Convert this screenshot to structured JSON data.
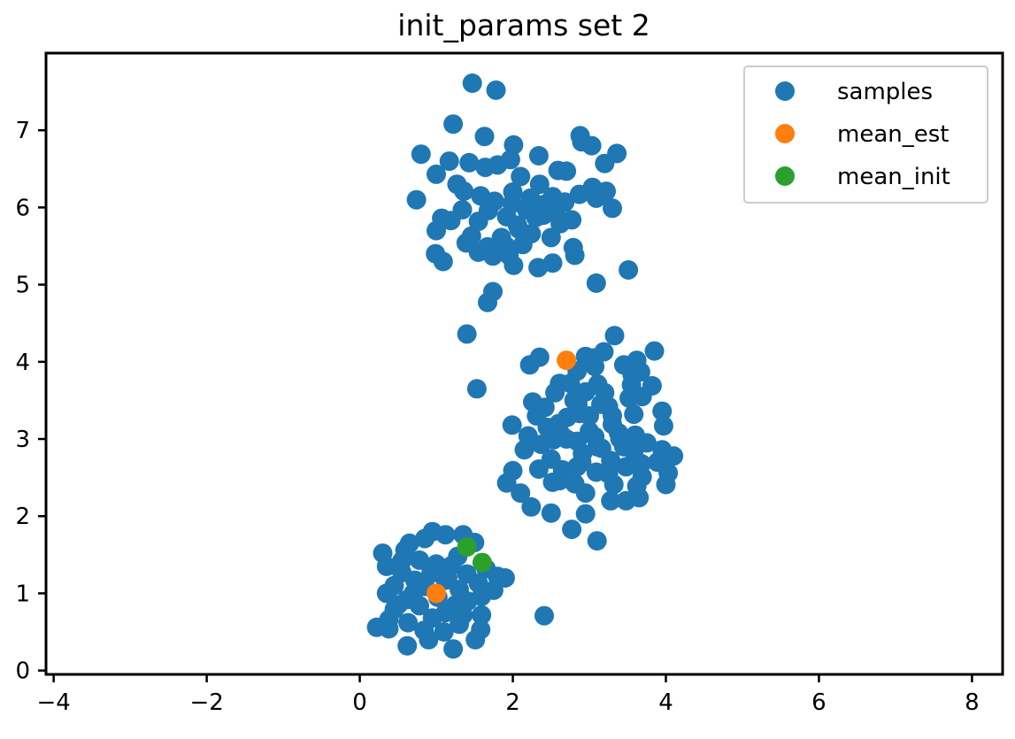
{
  "chart_data": {
    "type": "scatter",
    "title": "init_params set 2",
    "xlabel": "",
    "ylabel": "",
    "xlim": [
      -4.1,
      8.4
    ],
    "ylim": [
      -0.05,
      8.0
    ],
    "xticks": [
      -4,
      -2,
      0,
      2,
      4,
      6,
      8
    ],
    "xtick_labels": [
      "−4",
      "−2",
      "0",
      "2",
      "4",
      "6",
      "8"
    ],
    "yticks": [
      0,
      1,
      2,
      3,
      4,
      5,
      6,
      7
    ],
    "ytick_labels": [
      "0",
      "1",
      "2",
      "3",
      "4",
      "5",
      "6",
      "7"
    ],
    "grid": false,
    "legend_position": "top-right",
    "series": [
      {
        "name": "samples",
        "color": "#1f77b4",
        "points": [
          [
            1.47,
            7.61
          ],
          [
            1.78,
            7.52
          ],
          [
            1.22,
            7.08
          ],
          [
            2.88,
            6.93
          ],
          [
            1.63,
            6.92
          ],
          [
            2.01,
            6.81
          ],
          [
            2.9,
            6.85
          ],
          [
            3.03,
            6.8
          ],
          [
            0.8,
            6.69
          ],
          [
            2.34,
            6.67
          ],
          [
            3.36,
            6.7
          ],
          [
            3.2,
            6.57
          ],
          [
            1.17,
            6.6
          ],
          [
            1.43,
            6.58
          ],
          [
            2.59,
            6.48
          ],
          [
            2.7,
            6.47
          ],
          [
            1.0,
            6.43
          ],
          [
            1.64,
            6.52
          ],
          [
            1.8,
            6.55
          ],
          [
            1.97,
            6.62
          ],
          [
            2.1,
            6.4
          ],
          [
            1.27,
            6.3
          ],
          [
            1.36,
            6.21
          ],
          [
            3.04,
            6.26
          ],
          [
            3.22,
            6.21
          ],
          [
            0.74,
            6.1
          ],
          [
            1.76,
            6.08
          ],
          [
            2.23,
            6.12
          ],
          [
            2.52,
            6.14
          ],
          [
            2.87,
            6.17
          ],
          [
            3.09,
            6.12
          ],
          [
            1.68,
            5.96
          ],
          [
            1.99,
            6.05
          ],
          [
            2.18,
            5.97
          ],
          [
            2.41,
            6.04
          ],
          [
            2.68,
            6.07
          ],
          [
            3.3,
            5.99
          ],
          [
            1.34,
            5.97
          ],
          [
            1.07,
            5.86
          ],
          [
            1.92,
            5.88
          ],
          [
            2.3,
            5.87
          ],
          [
            2.77,
            5.84
          ],
          [
            1.55,
            5.82
          ],
          [
            1.19,
            5.83
          ],
          [
            2.06,
            5.77
          ],
          [
            2.62,
            5.79
          ],
          [
            1.0,
            5.7
          ],
          [
            1.46,
            5.63
          ],
          [
            1.85,
            5.61
          ],
          [
            2.24,
            5.66
          ],
          [
            2.5,
            5.61
          ],
          [
            2.79,
            5.48
          ],
          [
            1.39,
            5.54
          ],
          [
            1.67,
            5.49
          ],
          [
            2.13,
            5.52
          ],
          [
            1.55,
            5.42
          ],
          [
            1.74,
            5.37
          ],
          [
            2.81,
            5.38
          ],
          [
            1.95,
            5.38
          ],
          [
            1.09,
            5.3
          ],
          [
            0.99,
            5.4
          ],
          [
            2.01,
            5.25
          ],
          [
            2.33,
            5.22
          ],
          [
            2.52,
            5.28
          ],
          [
            3.51,
            5.19
          ],
          [
            3.09,
            5.02
          ],
          [
            1.74,
            4.91
          ],
          [
            1.67,
            4.77
          ],
          [
            1.4,
            4.36
          ],
          [
            2.08,
            5.72
          ],
          [
            2.4,
            5.9
          ],
          [
            2.56,
            5.92
          ],
          [
            2.0,
            6.2
          ],
          [
            1.58,
            6.15
          ],
          [
            2.35,
            6.3
          ],
          [
            1.91,
            5.5
          ],
          [
            3.33,
            4.34
          ],
          [
            3.85,
            4.14
          ],
          [
            3.19,
            4.13
          ],
          [
            2.95,
            4.07
          ],
          [
            3.05,
            4.05
          ],
          [
            2.35,
            4.06
          ],
          [
            3.62,
            4.02
          ],
          [
            2.22,
            3.96
          ],
          [
            3.45,
            3.96
          ],
          [
            3.07,
            3.94
          ],
          [
            3.67,
            3.87
          ],
          [
            2.84,
            3.88
          ],
          [
            3.56,
            3.83
          ],
          [
            1.53,
            3.65
          ],
          [
            3.82,
            3.69
          ],
          [
            2.61,
            3.72
          ],
          [
            2.75,
            3.72
          ],
          [
            3.11,
            3.71
          ],
          [
            3.69,
            3.55
          ],
          [
            2.26,
            3.48
          ],
          [
            2.95,
            3.61
          ],
          [
            3.52,
            3.53
          ],
          [
            2.42,
            3.41
          ],
          [
            3.25,
            3.42
          ],
          [
            2.71,
            3.28
          ],
          [
            2.87,
            3.33
          ],
          [
            3.58,
            3.32
          ],
          [
            3.95,
            3.36
          ],
          [
            2.31,
            3.3
          ],
          [
            1.99,
            3.18
          ],
          [
            3.97,
            3.17
          ],
          [
            3.3,
            3.19
          ],
          [
            2.59,
            3.15
          ],
          [
            3.38,
            3.08
          ],
          [
            2.2,
            3.04
          ],
          [
            2.63,
            3.06
          ],
          [
            3.07,
            3.03
          ],
          [
            2.53,
            2.99
          ],
          [
            2.84,
            2.97
          ],
          [
            2.37,
            2.93
          ],
          [
            3.16,
            2.88
          ],
          [
            3.58,
            2.84
          ],
          [
            3.95,
            2.86
          ],
          [
            2.15,
            2.86
          ],
          [
            2.91,
            2.81
          ],
          [
            3.68,
            2.68
          ],
          [
            4.1,
            2.78
          ],
          [
            2.5,
            2.74
          ],
          [
            3.28,
            2.72
          ],
          [
            3.89,
            2.7
          ],
          [
            2.84,
            2.64
          ],
          [
            2.34,
            2.61
          ],
          [
            3.48,
            2.64
          ],
          [
            4.03,
            2.56
          ],
          [
            2.0,
            2.59
          ],
          [
            3.09,
            2.57
          ],
          [
            3.69,
            2.51
          ],
          [
            2.61,
            2.46
          ],
          [
            2.52,
            2.44
          ],
          [
            1.92,
            2.43
          ],
          [
            3.32,
            2.41
          ],
          [
            2.81,
            2.42
          ],
          [
            4.0,
            2.41
          ],
          [
            2.95,
            2.3
          ],
          [
            3.62,
            2.39
          ],
          [
            2.1,
            2.3
          ],
          [
            3.28,
            2.2
          ],
          [
            3.48,
            2.2
          ],
          [
            3.65,
            2.24
          ],
          [
            2.24,
            2.12
          ],
          [
            2.5,
            2.04
          ],
          [
            2.95,
            2.03
          ],
          [
            2.77,
            1.83
          ],
          [
            3.1,
            1.68
          ],
          [
            2.41,
            0.71
          ],
          [
            2.8,
            3.5
          ],
          [
            3.0,
            3.3
          ],
          [
            3.2,
            3.6
          ],
          [
            2.6,
            3.2
          ],
          [
            3.4,
            3.0
          ],
          [
            2.9,
            2.7
          ],
          [
            3.1,
            2.9
          ],
          [
            2.7,
            3.0
          ],
          [
            3.3,
            3.3
          ],
          [
            3.0,
            3.1
          ],
          [
            2.45,
            3.15
          ],
          [
            3.45,
            2.9
          ],
          [
            3.6,
            3.05
          ],
          [
            3.75,
            2.95
          ],
          [
            2.85,
            3.45
          ],
          [
            3.25,
            2.55
          ],
          [
            2.65,
            2.6
          ],
          [
            3.15,
            3.45
          ],
          [
            2.55,
            3.6
          ],
          [
            3.55,
            3.7
          ],
          [
            0.95,
            1.8
          ],
          [
            1.35,
            1.76
          ],
          [
            0.65,
            1.65
          ],
          [
            1.12,
            1.76
          ],
          [
            0.85,
            1.71
          ],
          [
            1.5,
            1.66
          ],
          [
            0.3,
            1.52
          ],
          [
            0.59,
            1.56
          ],
          [
            1.28,
            1.48
          ],
          [
            0.78,
            1.43
          ],
          [
            1.2,
            1.36
          ],
          [
            1.65,
            1.32
          ],
          [
            0.35,
            1.35
          ],
          [
            1.0,
            1.38
          ],
          [
            0.55,
            1.27
          ],
          [
            0.93,
            1.26
          ],
          [
            1.4,
            1.25
          ],
          [
            1.8,
            1.22
          ],
          [
            1.9,
            1.2
          ],
          [
            0.72,
            1.17
          ],
          [
            1.12,
            1.17
          ],
          [
            1.55,
            1.13
          ],
          [
            0.45,
            1.1
          ],
          [
            0.85,
            1.09
          ],
          [
            1.3,
            1.05
          ],
          [
            1.75,
            1.04
          ],
          [
            1.59,
            0.96
          ],
          [
            0.35,
            1.0
          ],
          [
            1.02,
            0.95
          ],
          [
            0.62,
            0.92
          ],
          [
            1.41,
            0.9
          ],
          [
            1.25,
            0.85
          ],
          [
            0.78,
            0.84
          ],
          [
            0.45,
            0.79
          ],
          [
            1.12,
            0.75
          ],
          [
            1.59,
            0.72
          ],
          [
            0.95,
            0.68
          ],
          [
            0.38,
            0.66
          ],
          [
            0.63,
            0.62
          ],
          [
            1.3,
            0.6
          ],
          [
            1.58,
            0.53
          ],
          [
            0.22,
            0.56
          ],
          [
            0.38,
            0.54
          ],
          [
            0.84,
            0.52
          ],
          [
            1.1,
            0.5
          ],
          [
            0.9,
            0.4
          ],
          [
            1.51,
            0.4
          ],
          [
            0.62,
            0.32
          ],
          [
            1.22,
            0.28
          ],
          [
            0.55,
            1.42
          ],
          [
            0.7,
            1.0
          ],
          [
            1.15,
            1.2
          ],
          [
            1.35,
            0.72
          ],
          [
            0.5,
            0.85
          ]
        ]
      },
      {
        "name": "mean_est",
        "color": "#ff7f0e",
        "points": [
          [
            2.7,
            4.02
          ],
          [
            1.0,
            1.0
          ]
        ]
      },
      {
        "name": "mean_init",
        "color": "#2ca02c",
        "points": [
          [
            1.4,
            1.6
          ],
          [
            1.6,
            1.4
          ]
        ]
      }
    ]
  }
}
